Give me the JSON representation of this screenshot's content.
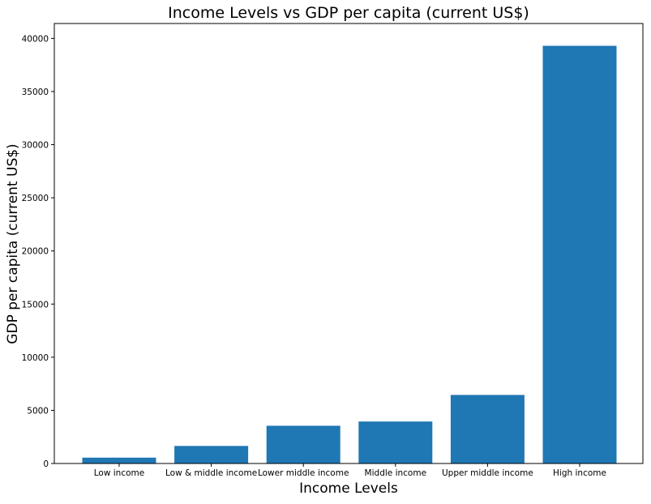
{
  "chart_data": {
    "type": "bar",
    "title": "Income Levels vs GDP per capita (current US$)",
    "xlabel": "Income Levels",
    "ylabel": "GDP per capita (current US$)",
    "categories": [
      "Low income",
      "Low & middle income",
      "Lower middle income",
      "Middle income",
      "Upper middle income",
      "High income"
    ],
    "values": [
      550,
      1650,
      3550,
      3950,
      6450,
      39300
    ],
    "ylim": [
      0,
      41400
    ],
    "yticks": [
      0,
      5000,
      10000,
      15000,
      20000,
      25000,
      30000,
      35000,
      40000
    ],
    "bar_color": "#1f77b4",
    "grid": false,
    "legend": "none"
  }
}
